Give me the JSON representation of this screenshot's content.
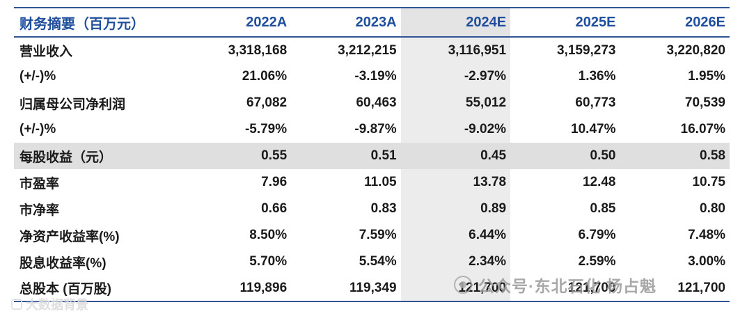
{
  "chart_data": {
    "type": "table",
    "title": "财务摘要（百万元）",
    "columns": [
      "2022A",
      "2023A",
      "2024E",
      "2025E",
      "2026E"
    ],
    "highlight_column": "2024E",
    "highlight_row": "每股收益（元）",
    "rows": [
      {
        "label": "营业收入",
        "values": [
          "3,318,168",
          "3,212,215",
          "3,116,951",
          "3,159,273",
          "3,220,820"
        ]
      },
      {
        "label": "(+/-)%",
        "values": [
          "21.06%",
          "-3.19%",
          "-2.97%",
          "1.36%",
          "1.95%"
        ]
      },
      {
        "label": "归属母公司净利润",
        "values": [
          "67,082",
          "60,463",
          "55,012",
          "60,773",
          "70,539"
        ]
      },
      {
        "label": "(+/-)%",
        "values": [
          "-5.79%",
          "-9.87%",
          "-9.02%",
          "10.47%",
          "16.07%"
        ]
      },
      {
        "label": "每股收益（元）",
        "values": [
          "0.55",
          "0.51",
          "0.45",
          "0.50",
          "0.58"
        ]
      },
      {
        "label": "市盈率",
        "values": [
          "7.96",
          "11.05",
          "13.78",
          "12.48",
          "10.75"
        ]
      },
      {
        "label": "市净率",
        "values": [
          "0.66",
          "0.83",
          "0.89",
          "0.85",
          "0.80"
        ]
      },
      {
        "label": "净资产收益率(%)",
        "values": [
          "8.50%",
          "7.59%",
          "6.44%",
          "6.79%",
          "7.48%"
        ]
      },
      {
        "label": "股息收益率(%)",
        "values": [
          "5.70%",
          "5.54%",
          "2.34%",
          "2.59%",
          "3.00%"
        ]
      },
      {
        "label": "总股本 (百万股)",
        "values": [
          "119,896",
          "119,349",
          "121,700",
          "121,700",
          "121,700"
        ]
      }
    ]
  },
  "watermarks": {
    "center_text": "公众号·东北石化 杨占魁",
    "corner_text": "大数据背景"
  },
  "colors": {
    "header_text_blue": "#1F4E9C",
    "border_blue": "#2F5597",
    "row_stripe_gray": "#DFDFDF",
    "column_highlight_gray": "#ECECEC"
  }
}
